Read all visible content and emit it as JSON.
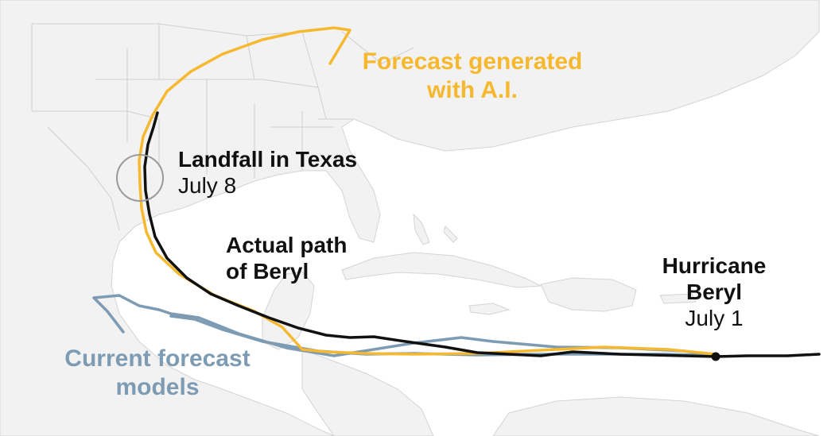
{
  "labels": {
    "ai_forecast": [
      "Forecast generated",
      "with A.I."
    ],
    "landfall": {
      "title": "Landfall in Texas",
      "date": "July 8"
    },
    "actual_path": [
      "Actual path",
      "of Beryl"
    ],
    "hurricane": {
      "title": [
        "Hurricane",
        "Beryl"
      ],
      "date": "July 1"
    },
    "current_models": [
      "Current forecast",
      "models"
    ]
  },
  "colors": {
    "ai_forecast": "#f5b82e",
    "actual_path": "#111111",
    "current_models": "#7d9bb3",
    "landfall_circle": "#9a9a9a",
    "land": "#f2f2f2",
    "borders": "#cfcfcf"
  }
}
